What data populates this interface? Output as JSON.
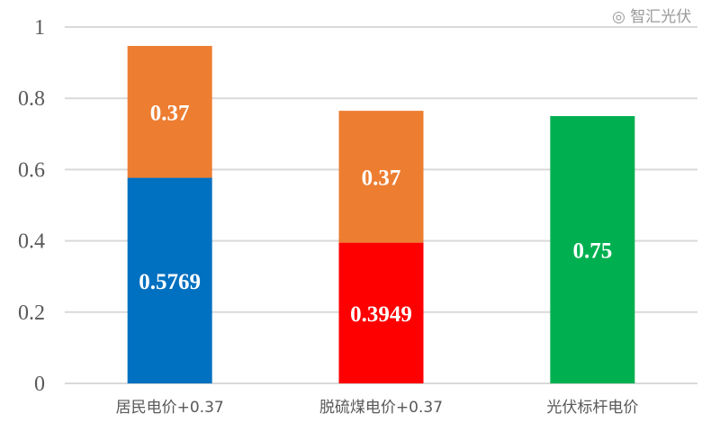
{
  "chart_data": {
    "type": "bar",
    "stacked": true,
    "categories": [
      "居民电价+0.37",
      "脱硫煤电价+0.37",
      "光伏标杆电价"
    ],
    "series": [
      {
        "values": [
          0.5769,
          0.3949,
          0.75
        ],
        "colors": [
          "#0070C0",
          "#FF0000",
          "#00B050"
        ],
        "labels": [
          "0.5769",
          "0.3949",
          "0.75"
        ]
      },
      {
        "values": [
          0.37,
          0.37,
          0
        ],
        "colors": [
          "#ED7D31",
          "#ED7D31",
          "#ED7D31"
        ],
        "labels": [
          "0.37",
          "0.37",
          ""
        ]
      }
    ],
    "ylim": [
      0,
      1
    ],
    "yticks": [
      "0",
      "0.2",
      "0.4",
      "0.6",
      "0.8",
      "1"
    ],
    "grid": true,
    "legend": "none"
  },
  "watermark": "智汇光伏"
}
